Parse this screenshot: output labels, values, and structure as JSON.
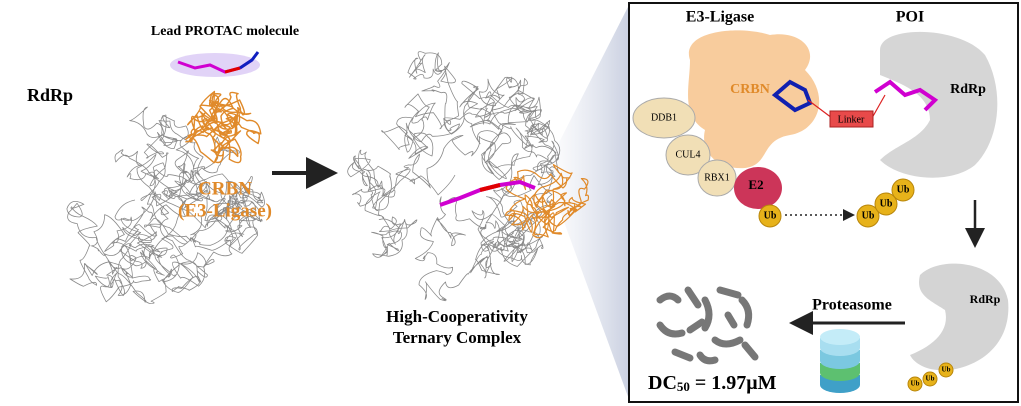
{
  "left": {
    "title": "Lead PROTAC molecule",
    "protein": "RdRp",
    "ligase": "CRBN",
    "ligase_note": "(E3-Ligase)"
  },
  "middle": {
    "caption": [
      "High-Cooperativity",
      "Ternary Complex"
    ]
  },
  "mechanism": {
    "e3_label": "E3-Ligase",
    "poi_label": "POI",
    "crbn": "CRBN",
    "rdrp": "RdRp",
    "ddb1": "DDB1",
    "cul4": "CUL4",
    "rbx1": "RBX1",
    "e2": "E2",
    "linker": "Linker",
    "ub_labels": [
      "Ub",
      "Ub",
      "Ub",
      "Ub",
      "Ub",
      "Ub",
      "Ub"
    ],
    "proteasome": "Proteasome",
    "rdrp_tagged": "RdRp",
    "dc50": {
      "symbol": "DC",
      "subscript": "50",
      "value": "= 1.97μM"
    }
  }
}
